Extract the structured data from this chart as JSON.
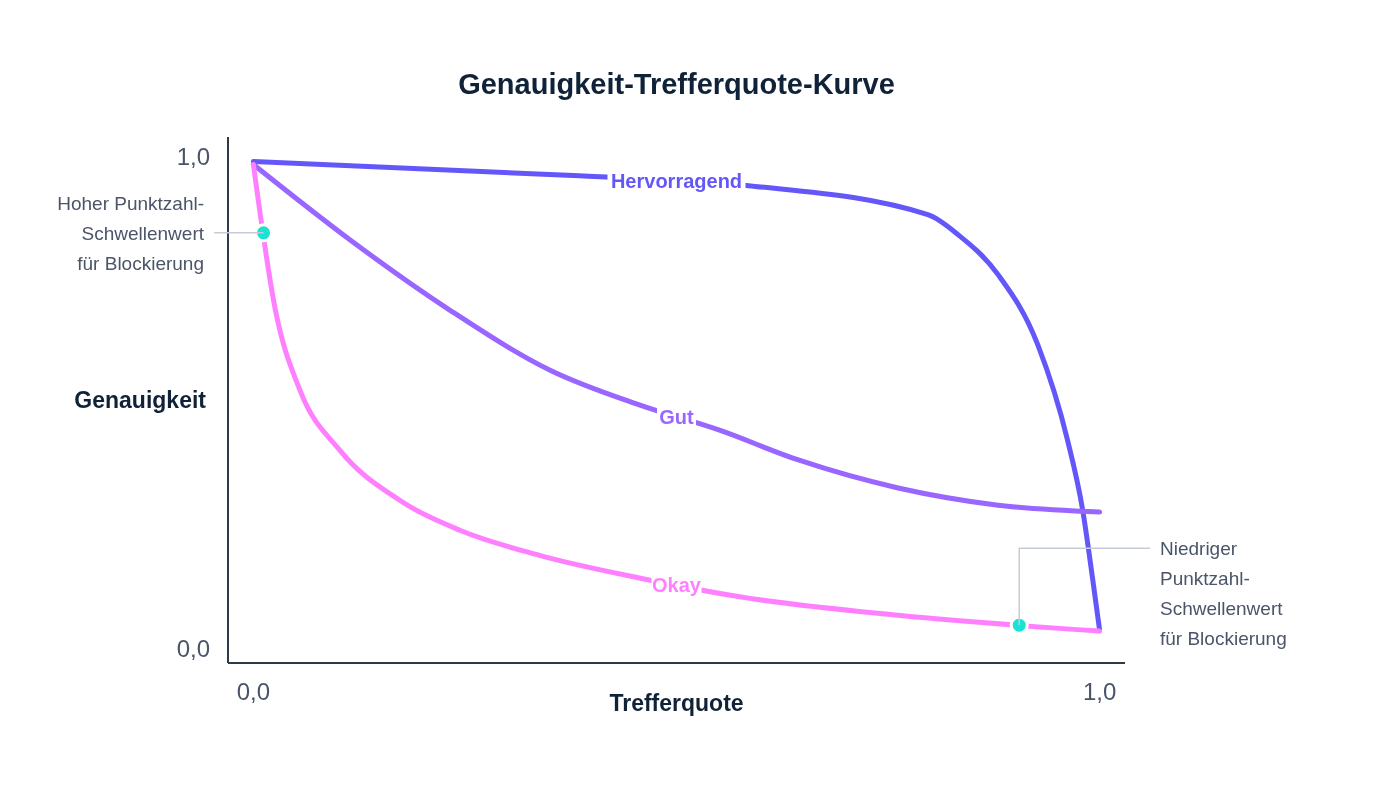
{
  "chart_data": {
    "type": "line",
    "title": "Genauigkeit-Trefferquote-Kurve",
    "xlabel": "Trefferquote",
    "ylabel": "Genauigkeit",
    "xlim": [
      -0.03,
      1.03
    ],
    "ylim": [
      -0.03,
      1.04
    ],
    "xticks": [
      {
        "value": 0,
        "label": "0,0"
      },
      {
        "value": 1,
        "label": "1,0"
      }
    ],
    "yticks": [
      {
        "value": 0,
        "label": "0,0"
      },
      {
        "value": 1,
        "label": "1,0"
      }
    ],
    "grid": false,
    "legend": false,
    "series": [
      {
        "name": "Hervorragend",
        "color": "#6457f9",
        "x": [
          0,
          0.385,
          0.585,
          0.797,
          0.833,
          0.88,
          0.927,
          0.962,
          0.98,
          0.992,
          1.0
        ],
        "values": [
          0.99,
          0.961,
          0.941,
          0.882,
          0.841,
          0.76,
          0.617,
          0.424,
          0.281,
          0.138,
          0.037
        ]
      },
      {
        "name": "Gut",
        "color": "#9966ff",
        "x": [
          0,
          0.114,
          0.232,
          0.35,
          0.456,
          0.55,
          0.644,
          0.762,
          0.88,
          1.0
        ],
        "values": [
          0.984,
          0.831,
          0.688,
          0.566,
          0.495,
          0.444,
          0.383,
          0.326,
          0.291,
          0.277
        ]
      },
      {
        "name": "Okay",
        "color": "#ff80ff",
        "x": [
          0,
          0.026,
          0.055,
          0.102,
          0.173,
          0.244,
          0.338,
          0.456,
          0.585,
          0.762,
          1.0
        ],
        "values": [
          0.984,
          0.688,
          0.525,
          0.403,
          0.301,
          0.24,
          0.189,
          0.143,
          0.102,
          0.067,
          0.035
        ]
      },
      {
        "type": "scatter",
        "color": "#19e3d3",
        "x": [
          0.012,
          0.905
        ],
        "values": [
          0.845,
          0.047
        ]
      }
    ],
    "annotations": [
      {
        "text": "Hoher Punktzahl-\nSchwellenwert\nfür Blockierung",
        "x": 0.012,
        "y": 0.845
      },
      {
        "text": "Niedriger\nPunktzahl-\nSchwellenwert\nfür Blockierung",
        "x": 0.905,
        "y": 0.047
      }
    ]
  }
}
